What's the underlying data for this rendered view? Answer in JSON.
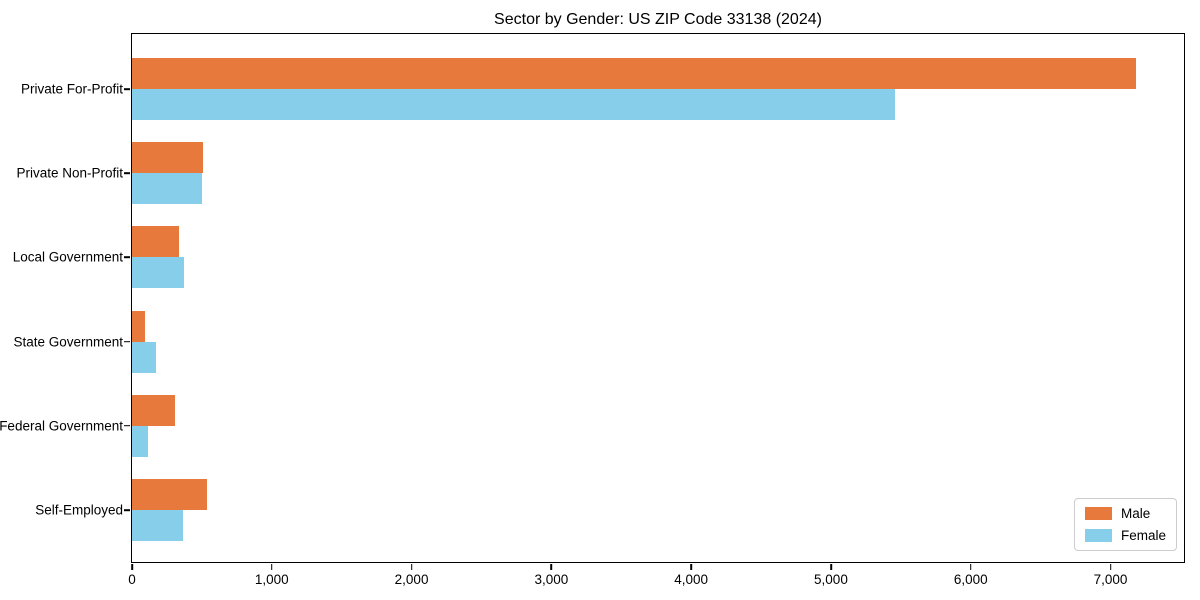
{
  "title": "Sector by Gender: US ZIP Code 33138 (2024)",
  "chart_data": {
    "type": "bar",
    "orientation": "horizontal",
    "title": "Sector by Gender: US ZIP Code 33138 (2024)",
    "xlabel": "",
    "ylabel": "",
    "grid": false,
    "legend_position": "lower right",
    "categories": [
      "Private For-Profit",
      "Private Non-Profit",
      "Local Government",
      "State Government",
      "Federal Government",
      "Self-Employed"
    ],
    "series": [
      {
        "name": "Male",
        "color": "#E8793D",
        "values": [
          7180,
          505,
          335,
          90,
          305,
          540
        ]
      },
      {
        "name": "Female",
        "color": "#87CEEB",
        "values": [
          5460,
          500,
          375,
          170,
          115,
          365
        ]
      }
    ],
    "xlim": [
      0,
      7540
    ],
    "xticks": [
      0,
      1000,
      2000,
      3000,
      4000,
      5000,
      6000,
      7000
    ],
    "xtick_labels": [
      "0",
      "1,000",
      "2,000",
      "3,000",
      "4,000",
      "5,000",
      "6,000",
      "7,000"
    ]
  },
  "legend": {
    "items": [
      {
        "label": "Male",
        "color": "#E8793D"
      },
      {
        "label": "Female",
        "color": "#87CEEB"
      }
    ]
  }
}
